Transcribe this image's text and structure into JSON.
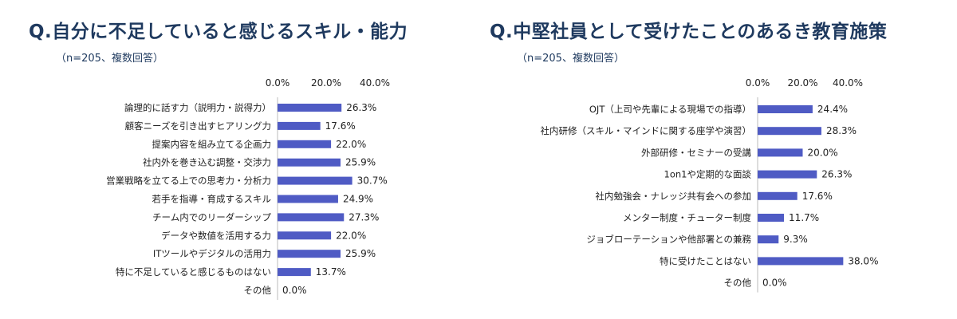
{
  "colors": {
    "bar": "#4f5bc4",
    "title": "#1f3a5f",
    "axis": "#bbbbbb"
  },
  "chart_data": [
    {
      "type": "bar",
      "orientation": "horizontal",
      "title": "Q.自分に不足していると感じるスキル・能力",
      "subtitle": "（n=205、複数回答）",
      "xlim": [
        0,
        40
      ],
      "xticks": [
        "0.0%",
        "20.0%",
        "40.0%"
      ],
      "xtick_values": [
        0,
        20,
        40
      ],
      "categories": [
        "論理的に話す力（説明力・説得力）",
        "顧客ニーズを引き出すヒアリング力",
        "提案内容を組み立てる企画力",
        "社内外を巻き込む調整・交渉力",
        "営業戦略を立てる上での思考力・分析力",
        "若手を指導・育成するスキル",
        "チーム内でのリーダーシップ",
        "データや数値を活用する力",
        "ITツールやデジタルの活用力",
        "特に不足していると感じるものはない",
        "その他"
      ],
      "values": [
        26.3,
        17.6,
        22.0,
        25.9,
        30.7,
        24.9,
        27.3,
        22.0,
        25.9,
        13.7,
        0.0
      ],
      "value_labels": [
        "26.3%",
        "17.6%",
        "22.0%",
        "25.9%",
        "30.7%",
        "24.9%",
        "27.3%",
        "22.0%",
        "25.9%",
        "13.7%",
        "0.0%"
      ]
    },
    {
      "type": "bar",
      "orientation": "horizontal",
      "title": "Q.中堅社員として受けたことのあるき教育施策",
      "subtitle": "（n=205、複数回答）",
      "xlim": [
        0,
        40
      ],
      "xticks": [
        "0.0%",
        "20.0%",
        "40.0%"
      ],
      "xtick_values": [
        0,
        20,
        40
      ],
      "categories": [
        "OJT（上司や先輩による現場での指導）",
        "社内研修（スキル・マインドに関する座学や演習）",
        "外部研修・セミナーの受講",
        "1on1や定期的な面談",
        "社内勉強会・ナレッジ共有会への参加",
        "メンター制度・チューター制度",
        "ジョブローテーションや他部署との兼務",
        "特に受けたことはない",
        "その他"
      ],
      "values": [
        24.4,
        28.3,
        20.0,
        26.3,
        17.6,
        11.7,
        9.3,
        38.0,
        0.0
      ],
      "value_labels": [
        "24.4%",
        "28.3%",
        "20.0%",
        "26.3%",
        "17.6%",
        "11.7%",
        "9.3%",
        "38.0%",
        "0.0%"
      ]
    }
  ]
}
